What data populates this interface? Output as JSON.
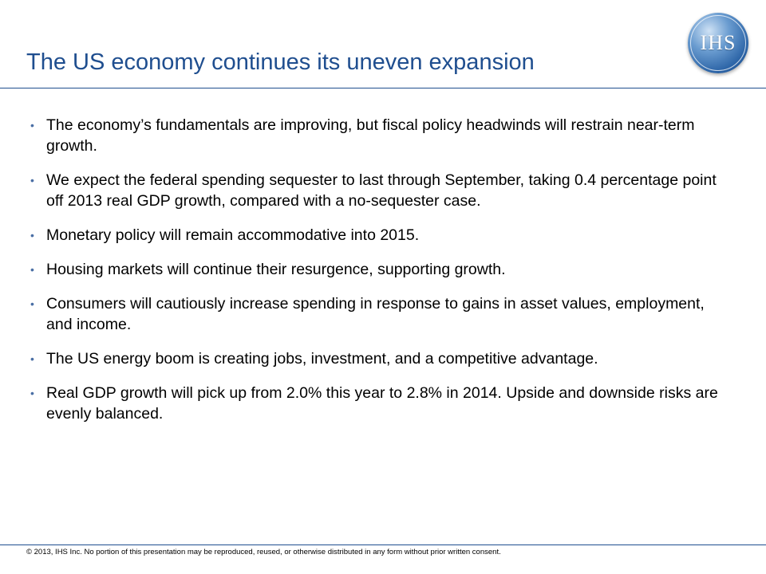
{
  "slide": {
    "title": "The US economy continues its uneven expansion",
    "logo_text": "IHS",
    "bullets": [
      "The economy’s fundamentals are improving, but fiscal policy headwinds will restrain near-term growth.",
      "We expect the federal spending sequester to last through September, taking 0.4 percentage point off 2013 real GDP growth, compared with a no-sequester case.",
      "Monetary policy will remain accommodative into 2015.",
      "Housing markets will continue their resurgence, supporting growth.",
      "Consumers will cautiously increase spending in response to gains in asset values, employment, and income.",
      "The US energy boom is creating jobs, investment, and a competitive advantage.",
      "Real GDP growth will pick up from 2.0% this year to 2.8% in 2014. Upside and downside risks are evenly balanced."
    ],
    "footer": "© 2013, IHS Inc. No portion of this presentation may be reproduced, reused, or otherwise distributed in any form without prior written consent."
  },
  "colors": {
    "title": "#1f4e8f",
    "rule": "#1f4e8f",
    "logo": "#2e66a8"
  },
  "icons": {
    "logo": "ihs-logo-icon"
  }
}
